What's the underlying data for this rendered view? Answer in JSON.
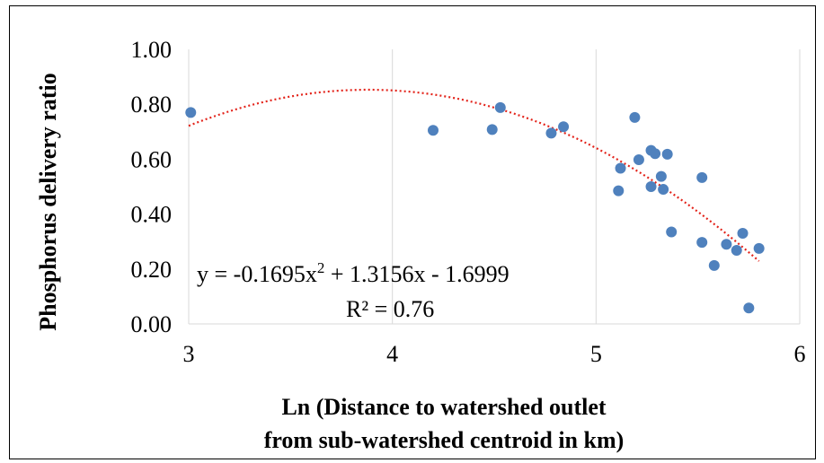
{
  "chart_data": {
    "type": "scatter",
    "xlabel_lines": [
      "Ln (Distance to watershed outlet",
      "from sub-watershed centroid in km)"
    ],
    "ylabel": "Phosphorus delivery ratio",
    "xlim": [
      3,
      6
    ],
    "ylim": [
      0,
      1
    ],
    "x_ticks": [
      "3",
      "4",
      "5",
      "6"
    ],
    "y_ticks": [
      "0.00",
      "0.20",
      "0.40",
      "0.60",
      "0.80",
      "1.00"
    ],
    "grid": "vertical",
    "legend": "none",
    "series": [
      {
        "type": "scatter",
        "color": "#4F81BD",
        "points": [
          [
            3.01,
            0.77
          ],
          [
            4.2,
            0.705
          ],
          [
            4.49,
            0.708
          ],
          [
            4.53,
            0.788
          ],
          [
            4.78,
            0.695
          ],
          [
            4.84,
            0.718
          ],
          [
            5.11,
            0.485
          ],
          [
            5.12,
            0.567
          ],
          [
            5.19,
            0.752
          ],
          [
            5.21,
            0.598
          ],
          [
            5.27,
            0.632
          ],
          [
            5.27,
            0.5
          ],
          [
            5.29,
            0.62
          ],
          [
            5.32,
            0.537
          ],
          [
            5.33,
            0.49
          ],
          [
            5.35,
            0.618
          ],
          [
            5.37,
            0.335
          ],
          [
            5.52,
            0.297
          ],
          [
            5.52,
            0.533
          ],
          [
            5.58,
            0.213
          ],
          [
            5.64,
            0.29
          ],
          [
            5.69,
            0.268
          ],
          [
            5.72,
            0.33
          ],
          [
            5.75,
            0.058
          ],
          [
            5.8,
            0.275
          ]
        ]
      },
      {
        "type": "trendline",
        "style": "dotted",
        "color": "#E3241B",
        "coefficients": [
          -0.1695,
          1.3156,
          -1.6999
        ],
        "x_range": [
          3.0,
          5.8
        ]
      }
    ],
    "annotations": {
      "equation_part1": "y = -0.1695x",
      "equation_exp": "2",
      "equation_part2": " + 1.3156x - 1.6999",
      "r_squared": "R² = 0.76"
    },
    "colors": {
      "points": "#4F81BD",
      "trendline": "#E3241B",
      "grid": "#D9D9D9"
    }
  }
}
